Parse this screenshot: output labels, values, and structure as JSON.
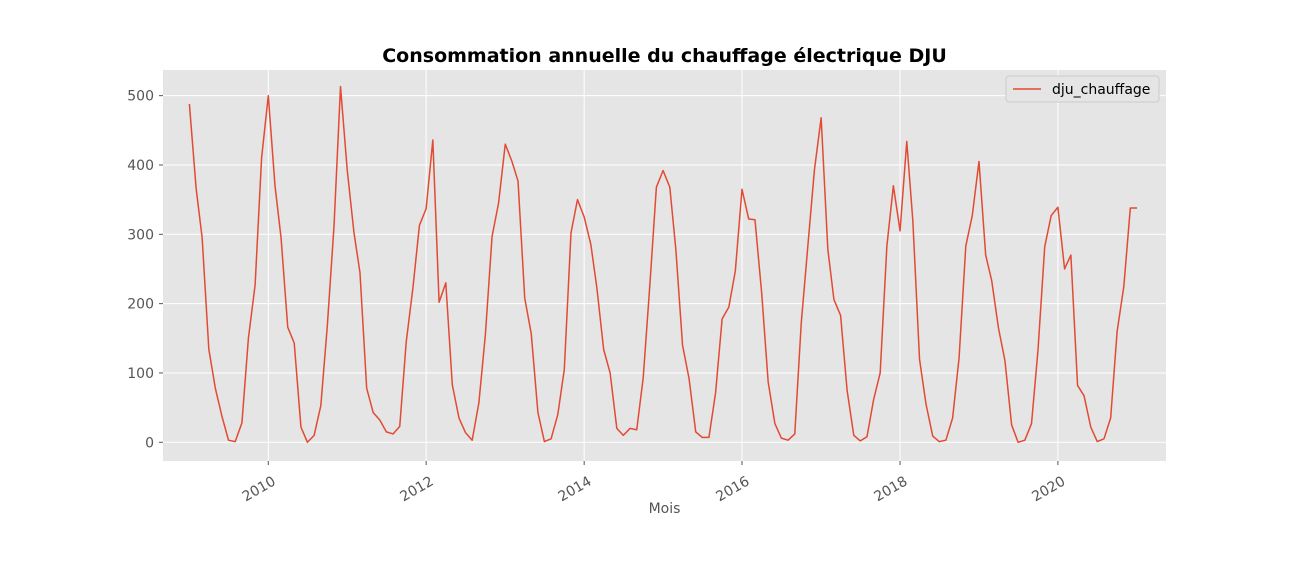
{
  "chart_data": {
    "type": "line",
    "title": "Consommation annuelle du chauffage électrique DJU",
    "xlabel": "Mois",
    "ylabel": "",
    "xlim": [
      "2008-09-01",
      "2021-05-15"
    ],
    "ylim": [
      -27,
      537
    ],
    "x_ticks": [
      "2010",
      "2012",
      "2014",
      "2016",
      "2018",
      "2020"
    ],
    "y_ticks": [
      0,
      100,
      200,
      300,
      400,
      500
    ],
    "grid": true,
    "legend_position": "top-right",
    "colors": {
      "background": "#e5e5e5",
      "grid": "#ffffff",
      "line": "#e24a33"
    },
    "series": [
      {
        "name": "dju_chauffage",
        "x": [
          "2009-01",
          "2009-02",
          "2009-03",
          "2009-04",
          "2009-05",
          "2009-06",
          "2009-07",
          "2009-08",
          "2009-09",
          "2009-10",
          "2009-11",
          "2009-12",
          "2010-01",
          "2010-02",
          "2010-03",
          "2010-04",
          "2010-05",
          "2010-06",
          "2010-07",
          "2010-08",
          "2010-09",
          "2010-10",
          "2010-11",
          "2010-12",
          "2011-01",
          "2011-02",
          "2011-03",
          "2011-04",
          "2011-05",
          "2011-06",
          "2011-07",
          "2011-08",
          "2011-09",
          "2011-10",
          "2011-11",
          "2011-12",
          "2012-01",
          "2012-02",
          "2012-03",
          "2012-04",
          "2012-05",
          "2012-06",
          "2012-07",
          "2012-08",
          "2012-09",
          "2012-10",
          "2012-11",
          "2012-12",
          "2013-01",
          "2013-02",
          "2013-03",
          "2013-04",
          "2013-05",
          "2013-06",
          "2013-07",
          "2013-08",
          "2013-09",
          "2013-10",
          "2013-11",
          "2013-12",
          "2014-01",
          "2014-02",
          "2014-03",
          "2014-04",
          "2014-05",
          "2014-06",
          "2014-07",
          "2014-08",
          "2014-09",
          "2014-10",
          "2014-11",
          "2014-12",
          "2015-01",
          "2015-02",
          "2015-03",
          "2015-04",
          "2015-05",
          "2015-06",
          "2015-07",
          "2015-08",
          "2015-09",
          "2015-10",
          "2015-11",
          "2015-12",
          "2016-01",
          "2016-02",
          "2016-03",
          "2016-04",
          "2016-05",
          "2016-06",
          "2016-07",
          "2016-08",
          "2016-09",
          "2016-10",
          "2016-11",
          "2016-12",
          "2017-01",
          "2017-02",
          "2017-03",
          "2017-04",
          "2017-05",
          "2017-06",
          "2017-07",
          "2017-08",
          "2017-09",
          "2017-10",
          "2017-11",
          "2017-12",
          "2018-01",
          "2018-02",
          "2018-03",
          "2018-04",
          "2018-05",
          "2018-06",
          "2018-07",
          "2018-08",
          "2018-09",
          "2018-10",
          "2018-11",
          "2018-12",
          "2019-01",
          "2019-02",
          "2019-03",
          "2019-04",
          "2019-05",
          "2019-06",
          "2019-07",
          "2019-08",
          "2019-09",
          "2019-10",
          "2019-11",
          "2019-12",
          "2020-01",
          "2020-02",
          "2020-03",
          "2020-04",
          "2020-05",
          "2020-06",
          "2020-07",
          "2020-08",
          "2020-09",
          "2020-10",
          "2020-11",
          "2020-12",
          "2021-01"
        ],
        "values": [
          488,
          367,
          295,
          134,
          78,
          37,
          3,
          1,
          28,
          150,
          227,
          410,
          500,
          370,
          295,
          166,
          143,
          22,
          0,
          10,
          53,
          168,
          312,
          513,
          393,
          303,
          245,
          78,
          43,
          32,
          15,
          12,
          23,
          145,
          223,
          313,
          337,
          436,
          202,
          230,
          83,
          35,
          14,
          3,
          57,
          155,
          297,
          345,
          430,
          405,
          377,
          208,
          157,
          43,
          1,
          5,
          40,
          105,
          302,
          350,
          325,
          285,
          222,
          134,
          100,
          20,
          10,
          20,
          18,
          93,
          228,
          368,
          392,
          368,
          278,
          140,
          92,
          15,
          7,
          7,
          72,
          178,
          195,
          247,
          365,
          322,
          321,
          215,
          87,
          27,
          6,
          3,
          12,
          172,
          285,
          393,
          468,
          278,
          206,
          183,
          75,
          10,
          2,
          8,
          62,
          100,
          283,
          370,
          305,
          434,
          320,
          120,
          55,
          9,
          1,
          3,
          35,
          122,
          283,
          327,
          405,
          270,
          233,
          165,
          118,
          25,
          0,
          3,
          27,
          133,
          282,
          327,
          339,
          250,
          270,
          82,
          67,
          22,
          1,
          5,
          35,
          160,
          225,
          338,
          338
        ]
      }
    ]
  }
}
